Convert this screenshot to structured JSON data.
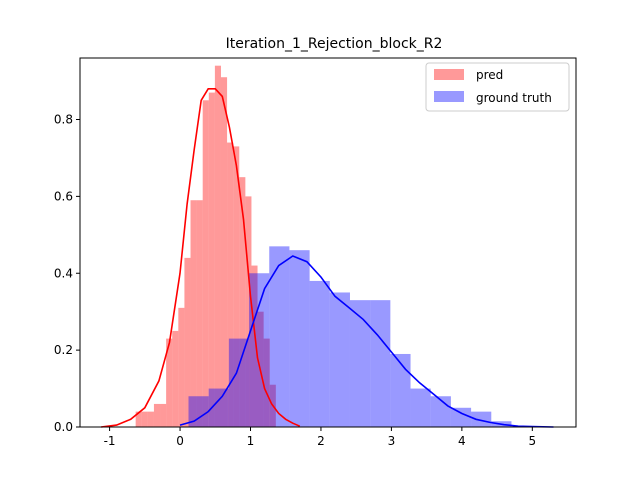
{
  "chart_data": {
    "type": "histogram",
    "title": "Iteration_1_Rejection_block_R2",
    "xlabel": "",
    "ylabel": "",
    "xlim": [
      -1.42,
      5.62
    ],
    "ylim": [
      0,
      0.96
    ],
    "xticks": [
      -1,
      0,
      1,
      2,
      3,
      4,
      5
    ],
    "yticks": [
      0.0,
      0.2,
      0.4,
      0.6,
      0.8
    ],
    "ytick_labels": [
      "0.0",
      "0.2",
      "0.4",
      "0.6",
      "0.8"
    ],
    "grid": false,
    "legend": {
      "placement": "top-right"
    },
    "series": [
      {
        "name": "pred",
        "color": "#ff0000",
        "alpha": 0.4,
        "bar_start": -0.63,
        "bar_width": 0.0865,
        "bar_heights": [
          0.04,
          0.04,
          0.04,
          0.06,
          0.06,
          0.23,
          0.25,
          0.31,
          0.44,
          0.59,
          0.59,
          0.85,
          0.87,
          0.94,
          0.91,
          0.74,
          0.73,
          0.65,
          0.6,
          0.42,
          0.3,
          0.23,
          0.11
        ],
        "kde": [
          [
            -1.12,
            0.0
          ],
          [
            -0.9,
            0.005
          ],
          [
            -0.7,
            0.02
          ],
          [
            -0.5,
            0.05
          ],
          [
            -0.3,
            0.12
          ],
          [
            -0.15,
            0.22
          ],
          [
            0.0,
            0.4
          ],
          [
            0.1,
            0.58
          ],
          [
            0.2,
            0.72
          ],
          [
            0.3,
            0.85
          ],
          [
            0.4,
            0.88
          ],
          [
            0.5,
            0.88
          ],
          [
            0.6,
            0.86
          ],
          [
            0.7,
            0.78
          ],
          [
            0.8,
            0.68
          ],
          [
            0.9,
            0.54
          ],
          [
            1.0,
            0.34
          ],
          [
            1.1,
            0.18
          ],
          [
            1.2,
            0.1
          ],
          [
            1.3,
            0.06
          ],
          [
            1.4,
            0.035
          ],
          [
            1.5,
            0.02
          ],
          [
            1.6,
            0.01
          ],
          [
            1.7,
            0.002
          ]
        ]
      },
      {
        "name": "ground truth",
        "color": "#0000ff",
        "alpha": 0.4,
        "bar_start": 0.12,
        "bar_width": 0.2865,
        "bar_heights": [
          0.08,
          0.1,
          0.23,
          0.4,
          0.47,
          0.46,
          0.38,
          0.35,
          0.33,
          0.33,
          0.19,
          0.1,
          0.08,
          0.05,
          0.04,
          0.015
        ],
        "kde": [
          [
            0.0,
            0.005
          ],
          [
            0.2,
            0.015
          ],
          [
            0.4,
            0.04
          ],
          [
            0.6,
            0.08
          ],
          [
            0.8,
            0.14
          ],
          [
            1.0,
            0.25
          ],
          [
            1.2,
            0.36
          ],
          [
            1.4,
            0.42
          ],
          [
            1.6,
            0.445
          ],
          [
            1.8,
            0.43
          ],
          [
            2.0,
            0.39
          ],
          [
            2.2,
            0.34
          ],
          [
            2.4,
            0.31
          ],
          [
            2.6,
            0.28
          ],
          [
            2.8,
            0.24
          ],
          [
            3.0,
            0.195
          ],
          [
            3.2,
            0.15
          ],
          [
            3.4,
            0.115
          ],
          [
            3.6,
            0.085
          ],
          [
            3.8,
            0.055
          ],
          [
            4.0,
            0.035
          ],
          [
            4.2,
            0.02
          ],
          [
            4.4,
            0.012
          ],
          [
            4.6,
            0.006
          ],
          [
            4.8,
            0.002
          ],
          [
            5.0,
            0.001
          ],
          [
            5.3,
            0.0
          ]
        ]
      }
    ]
  }
}
